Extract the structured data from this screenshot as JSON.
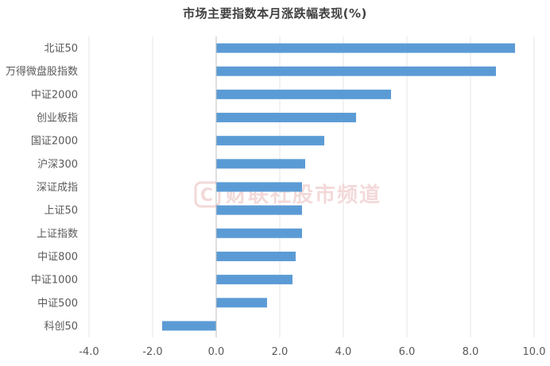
{
  "chart_data": {
    "type": "bar",
    "orientation": "horizontal",
    "title": "市场主要指数本月涨跌幅表现(%)",
    "categories": [
      "北证50",
      "万得微盘股指数",
      "中证2000",
      "创业板指",
      "国证2000",
      "沪深300",
      "深证成指",
      "上证50",
      "上证指数",
      "中证800",
      "中证1000",
      "中证500",
      "科创50"
    ],
    "values": [
      9.4,
      8.8,
      5.5,
      4.4,
      3.4,
      2.8,
      2.7,
      2.7,
      2.7,
      2.5,
      2.4,
      1.6,
      -1.7
    ],
    "xlim": [
      -4.0,
      10.0
    ],
    "xticks": [
      "-4.0",
      "-2.0",
      "0.0",
      "2.0",
      "4.0",
      "6.0",
      "8.0",
      "10.0"
    ],
    "grid": true,
    "legend": "none",
    "bar_color": "#5b9bd5",
    "grid_color": "#e6e6e6",
    "axis_color": "#bfbfbf"
  },
  "watermark": {
    "text": "财联社股市频道",
    "logo_letter": "C",
    "color": "#f3d9d9"
  }
}
